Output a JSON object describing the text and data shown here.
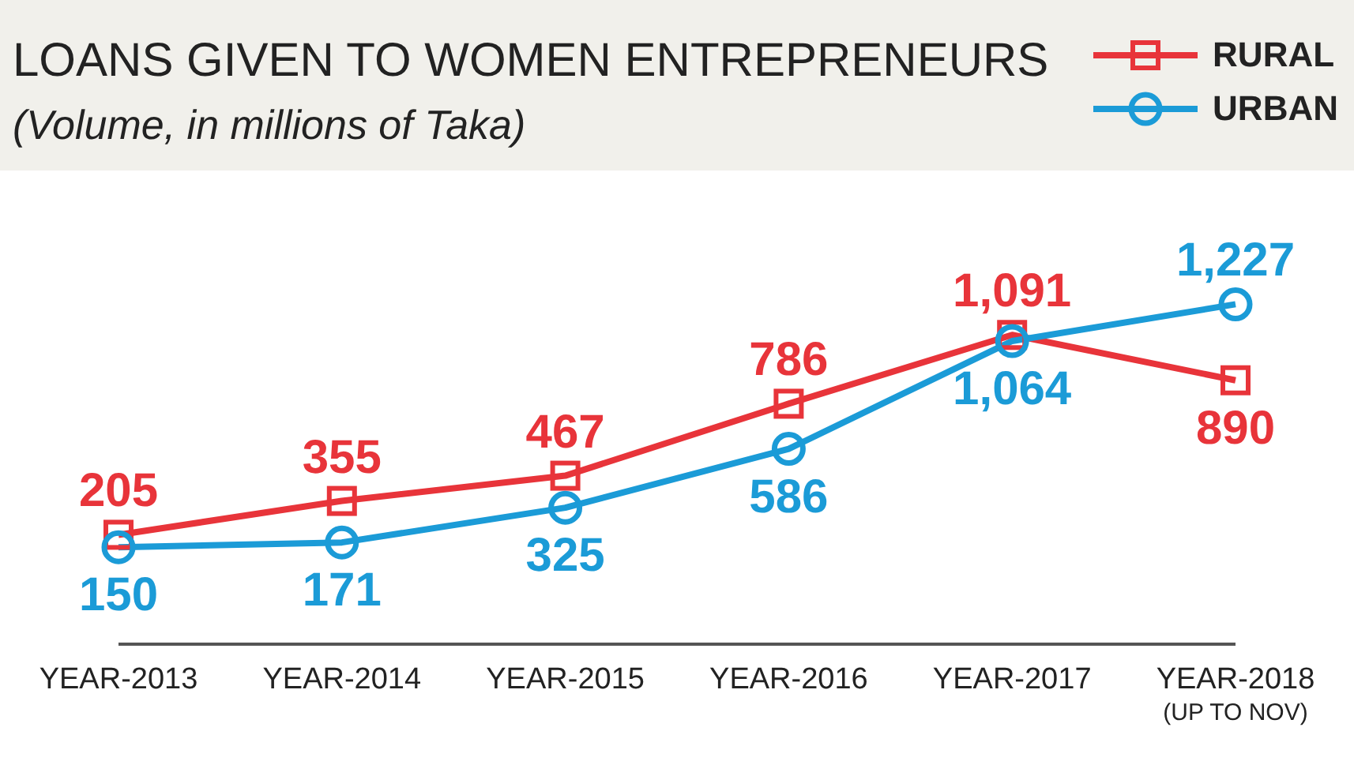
{
  "chart_data": {
    "type": "line",
    "title": "LOANS GIVEN TO WOMEN ENTREPRENEURS",
    "subtitle": "(Volume, in millions of Taka)",
    "categories": [
      "YEAR-2013",
      "YEAR-2014",
      "YEAR-2015",
      "YEAR-2016",
      "YEAR-2017",
      "YEAR-2018$_{(UP TO NOV)}$"
    ],
    "series": [
      {
        "name": "RURAL",
        "color": "#e8343a",
        "marker": "square",
        "values": [
          205,
          355,
          467,
          786,
          1091,
          890
        ],
        "value_labels": [
          "205",
          "355",
          "467",
          "786",
          "1,091",
          "890"
        ]
      },
      {
        "name": "URBAN",
        "color": "#1b9bd7",
        "marker": "circle",
        "values": [
          150,
          171,
          325,
          586,
          1064,
          1227
        ],
        "value_labels": [
          "150",
          "171",
          "325",
          "586",
          "1,064",
          "1,227"
        ]
      }
    ],
    "legend": "top right",
    "grid": false
  }
}
